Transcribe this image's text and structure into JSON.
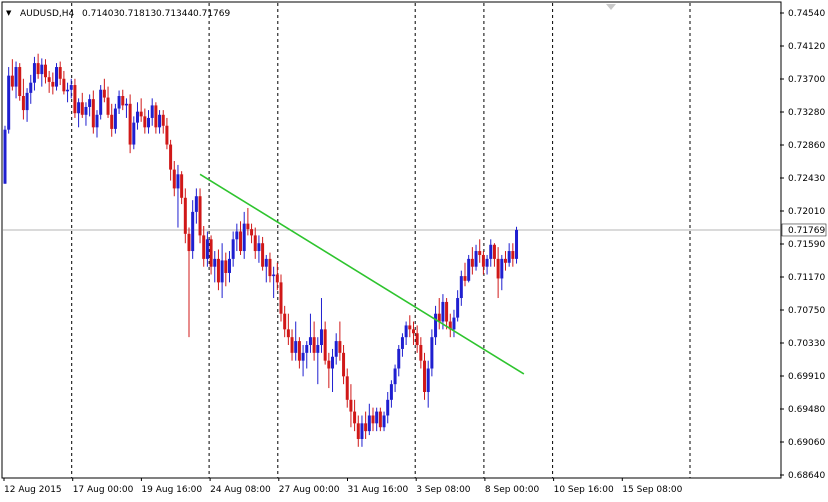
{
  "header": {
    "arrow_glyph": "▼",
    "symbol": "AUDUSD,H4",
    "open": "0.71403",
    "high": "0.71813",
    "low": "0.71344",
    "close": "0.71769"
  },
  "colors": {
    "background": "#ffffff",
    "bull": "#1f1fd0",
    "bear": "#d01818",
    "trendline": "#2ec42e",
    "grid": "#000000",
    "price_line": "#b4b4b4",
    "current_price_bg": "#ffffff"
  },
  "chart_data": {
    "type": "candlestick",
    "title": "AUDUSD,H4",
    "timeframe": "H4",
    "y_ticks": [
      "0.74540",
      "0.74120",
      "0.73700",
      "0.73280",
      "0.72860",
      "0.72430",
      "0.72010",
      "0.71590",
      "0.71170",
      "0.70750",
      "0.70330",
      "0.69910",
      "0.69480",
      "0.69060",
      "0.68640"
    ],
    "ylim": [
      0.6864,
      0.7454
    ],
    "x_ticks": [
      "12 Aug 2015",
      "17 Aug 00:00",
      "19 Aug 16:00",
      "24 Aug 08:00",
      "27 Aug 00:00",
      "31 Aug 16:00",
      "3 Sep 08:00",
      "8 Sep 00:00",
      "10 Sep 16:00",
      "15 Sep 08:00"
    ],
    "grid_after_ticks": [
      1,
      3,
      4,
      6,
      7,
      8
    ],
    "grid_tail": true,
    "current_price": "0.71769",
    "trendline": {
      "from": {
        "index": 53,
        "price": 0.7248
      },
      "to": {
        "index": 141,
        "price": 0.6993
      }
    },
    "candles": [
      [
        0.7236,
        0.731,
        0.7236,
        0.7305
      ],
      [
        0.7305,
        0.7385,
        0.73,
        0.7374
      ],
      [
        0.7374,
        0.7395,
        0.7355,
        0.736
      ],
      [
        0.736,
        0.7392,
        0.7345,
        0.7385
      ],
      [
        0.7385,
        0.739,
        0.7342,
        0.7348
      ],
      [
        0.7348,
        0.737,
        0.7318,
        0.733
      ],
      [
        0.733,
        0.7358,
        0.7315,
        0.7352
      ],
      [
        0.7352,
        0.7375,
        0.7338,
        0.7365
      ],
      [
        0.7365,
        0.7398,
        0.7355,
        0.739
      ],
      [
        0.739,
        0.7402,
        0.737,
        0.7376
      ],
      [
        0.7376,
        0.7396,
        0.736,
        0.7388
      ],
      [
        0.7388,
        0.7395,
        0.7364,
        0.7372
      ],
      [
        0.7372,
        0.738,
        0.7352,
        0.7366
      ],
      [
        0.7366,
        0.7378,
        0.735,
        0.736
      ],
      [
        0.736,
        0.739,
        0.7355,
        0.7385
      ],
      [
        0.7385,
        0.7392,
        0.7362,
        0.737
      ],
      [
        0.737,
        0.738,
        0.735,
        0.7354
      ],
      [
        0.7354,
        0.7365,
        0.734,
        0.7356
      ],
      [
        0.7356,
        0.737,
        0.7345,
        0.7362
      ],
      [
        0.7362,
        0.737,
        0.732,
        0.7326
      ],
      [
        0.7326,
        0.7345,
        0.7308,
        0.734
      ],
      [
        0.734,
        0.7352,
        0.732,
        0.7324
      ],
      [
        0.7324,
        0.734,
        0.731,
        0.7334
      ],
      [
        0.7334,
        0.735,
        0.7322,
        0.7344
      ],
      [
        0.7344,
        0.7355,
        0.73,
        0.7308
      ],
      [
        0.7308,
        0.733,
        0.7295,
        0.7324
      ],
      [
        0.7324,
        0.7362,
        0.7318,
        0.7356
      ],
      [
        0.7356,
        0.737,
        0.734,
        0.7346
      ],
      [
        0.7346,
        0.736,
        0.732,
        0.7324
      ],
      [
        0.7324,
        0.7338,
        0.7296,
        0.7306
      ],
      [
        0.7306,
        0.7338,
        0.73,
        0.7332
      ],
      [
        0.7332,
        0.7355,
        0.7325,
        0.7348
      ],
      [
        0.7348,
        0.7356,
        0.733,
        0.7336
      ],
      [
        0.7336,
        0.7345,
        0.732,
        0.7338
      ],
      [
        0.7338,
        0.735,
        0.7275,
        0.7286
      ],
      [
        0.7286,
        0.7322,
        0.728,
        0.7314
      ],
      [
        0.7314,
        0.734,
        0.7305,
        0.7328
      ],
      [
        0.7328,
        0.7345,
        0.7315,
        0.7322
      ],
      [
        0.7322,
        0.7332,
        0.73,
        0.7308
      ],
      [
        0.7308,
        0.733,
        0.73,
        0.732
      ],
      [
        0.732,
        0.7345,
        0.731,
        0.7336
      ],
      [
        0.7336,
        0.734,
        0.73,
        0.7308
      ],
      [
        0.7308,
        0.733,
        0.73,
        0.7324
      ],
      [
        0.7324,
        0.733,
        0.73,
        0.731
      ],
      [
        0.731,
        0.732,
        0.728,
        0.7286
      ],
      [
        0.7286,
        0.7292,
        0.724,
        0.7254
      ],
      [
        0.7254,
        0.7265,
        0.722,
        0.723
      ],
      [
        0.723,
        0.726,
        0.718,
        0.7248
      ],
      [
        0.7248,
        0.7252,
        0.721,
        0.7218
      ],
      [
        0.7218,
        0.723,
        0.716,
        0.7172
      ],
      [
        0.7172,
        0.718,
        0.704,
        0.715
      ],
      [
        0.715,
        0.7215,
        0.714,
        0.72
      ],
      [
        0.72,
        0.723,
        0.7185,
        0.722
      ],
      [
        0.722,
        0.723,
        0.716,
        0.717
      ],
      [
        0.717,
        0.7182,
        0.713,
        0.714
      ],
      [
        0.714,
        0.7175,
        0.713,
        0.7165
      ],
      [
        0.7165,
        0.717,
        0.712,
        0.713
      ],
      [
        0.713,
        0.715,
        0.711,
        0.714
      ],
      [
        0.714,
        0.7152,
        0.71,
        0.711
      ],
      [
        0.711,
        0.716,
        0.709,
        0.7138
      ],
      [
        0.7138,
        0.7148,
        0.7105,
        0.7122
      ],
      [
        0.7122,
        0.715,
        0.711,
        0.714
      ],
      [
        0.714,
        0.7175,
        0.713,
        0.7165
      ],
      [
        0.7165,
        0.7185,
        0.715,
        0.7175
      ],
      [
        0.7175,
        0.7188,
        0.7145,
        0.715
      ],
      [
        0.715,
        0.72,
        0.714,
        0.7185
      ],
      [
        0.7185,
        0.7205,
        0.717,
        0.7178
      ],
      [
        0.7178,
        0.7185,
        0.716,
        0.717
      ],
      [
        0.717,
        0.718,
        0.714,
        0.715
      ],
      [
        0.715,
        0.717,
        0.7135,
        0.716
      ],
      [
        0.716,
        0.7168,
        0.7125,
        0.713
      ],
      [
        0.713,
        0.7145,
        0.711,
        0.714
      ],
      [
        0.714,
        0.7148,
        0.711,
        0.7118
      ],
      [
        0.7118,
        0.713,
        0.709,
        0.712
      ],
      [
        0.712,
        0.7135,
        0.71,
        0.711
      ],
      [
        0.711,
        0.712,
        0.706,
        0.707
      ],
      [
        0.707,
        0.708,
        0.704,
        0.705
      ],
      [
        0.705,
        0.707,
        0.703,
        0.704
      ],
      [
        0.704,
        0.705,
        0.701,
        0.702
      ],
      [
        0.702,
        0.706,
        0.701,
        0.7035
      ],
      [
        0.7035,
        0.704,
        0.7,
        0.701
      ],
      [
        0.701,
        0.703,
        0.699,
        0.702
      ],
      [
        0.702,
        0.7035,
        0.7,
        0.703
      ],
      [
        0.703,
        0.707,
        0.702,
        0.704
      ],
      [
        0.704,
        0.706,
        0.701,
        0.702
      ],
      [
        0.702,
        0.704,
        0.698,
        0.703
      ],
      [
        0.703,
        0.709,
        0.702,
        0.705
      ],
      [
        0.705,
        0.706,
        0.7005,
        0.701
      ],
      [
        0.701,
        0.702,
        0.6975,
        0.7
      ],
      [
        0.7,
        0.7025,
        0.697,
        0.7015
      ],
      [
        0.7015,
        0.7045,
        0.7005,
        0.7035
      ],
      [
        0.7035,
        0.706,
        0.701,
        0.702
      ],
      [
        0.702,
        0.703,
        0.698,
        0.699
      ],
      [
        0.699,
        0.7,
        0.695,
        0.696
      ],
      [
        0.696,
        0.698,
        0.6925,
        0.6945
      ],
      [
        0.6945,
        0.696,
        0.692,
        0.693
      ],
      [
        0.693,
        0.694,
        0.69,
        0.691
      ],
      [
        0.691,
        0.694,
        0.69,
        0.693
      ],
      [
        0.693,
        0.6945,
        0.691,
        0.692
      ],
      [
        0.692,
        0.6955,
        0.6915,
        0.694
      ],
      [
        0.694,
        0.695,
        0.692,
        0.693
      ],
      [
        0.693,
        0.695,
        0.692,
        0.6945
      ],
      [
        0.6945,
        0.695,
        0.692,
        0.6925
      ],
      [
        0.6925,
        0.6945,
        0.692,
        0.694
      ],
      [
        0.694,
        0.697,
        0.693,
        0.696
      ],
      [
        0.696,
        0.6985,
        0.695,
        0.698
      ],
      [
        0.698,
        0.7005,
        0.697,
        0.7
      ],
      [
        0.7,
        0.703,
        0.699,
        0.7025
      ],
      [
        0.7025,
        0.7045,
        0.7015,
        0.704
      ],
      [
        0.704,
        0.706,
        0.703,
        0.7055
      ],
      [
        0.7055,
        0.7068,
        0.704,
        0.705
      ],
      [
        0.705,
        0.706,
        0.703,
        0.7045
      ],
      [
        0.7045,
        0.7055,
        0.702,
        0.703
      ],
      [
        0.703,
        0.704,
        0.7,
        0.701
      ],
      [
        0.701,
        0.702,
        0.696,
        0.697
      ],
      [
        0.697,
        0.701,
        0.695,
        0.7
      ],
      [
        0.7,
        0.705,
        0.699,
        0.704
      ],
      [
        0.704,
        0.708,
        0.703,
        0.707
      ],
      [
        0.707,
        0.709,
        0.705,
        0.706
      ],
      [
        0.706,
        0.7095,
        0.705,
        0.7085
      ],
      [
        0.7085,
        0.709,
        0.705,
        0.706
      ],
      [
        0.706,
        0.707,
        0.704,
        0.705
      ],
      [
        0.705,
        0.7075,
        0.704,
        0.7065
      ],
      [
        0.7065,
        0.71,
        0.706,
        0.709
      ],
      [
        0.709,
        0.7125,
        0.708,
        0.7118
      ],
      [
        0.7118,
        0.7135,
        0.7105,
        0.7112
      ],
      [
        0.7112,
        0.7145,
        0.711,
        0.714
      ],
      [
        0.714,
        0.7155,
        0.712,
        0.713
      ],
      [
        0.713,
        0.7158,
        0.7125,
        0.715
      ],
      [
        0.715,
        0.7165,
        0.7135,
        0.7145
      ],
      [
        0.7145,
        0.715,
        0.712,
        0.713
      ],
      [
        0.713,
        0.7145,
        0.712,
        0.714
      ],
      [
        0.714,
        0.7165,
        0.713,
        0.7158
      ],
      [
        0.7158,
        0.716,
        0.713,
        0.714
      ],
      [
        0.714,
        0.7155,
        0.709,
        0.7115
      ],
      [
        0.7115,
        0.7145,
        0.71,
        0.714
      ],
      [
        0.714,
        0.715,
        0.7125,
        0.7135
      ],
      [
        0.7135,
        0.716,
        0.713,
        0.715
      ],
      [
        0.715,
        0.716,
        0.713,
        0.714
      ],
      [
        0.714,
        0.7181,
        0.7134,
        0.7177
      ]
    ]
  }
}
